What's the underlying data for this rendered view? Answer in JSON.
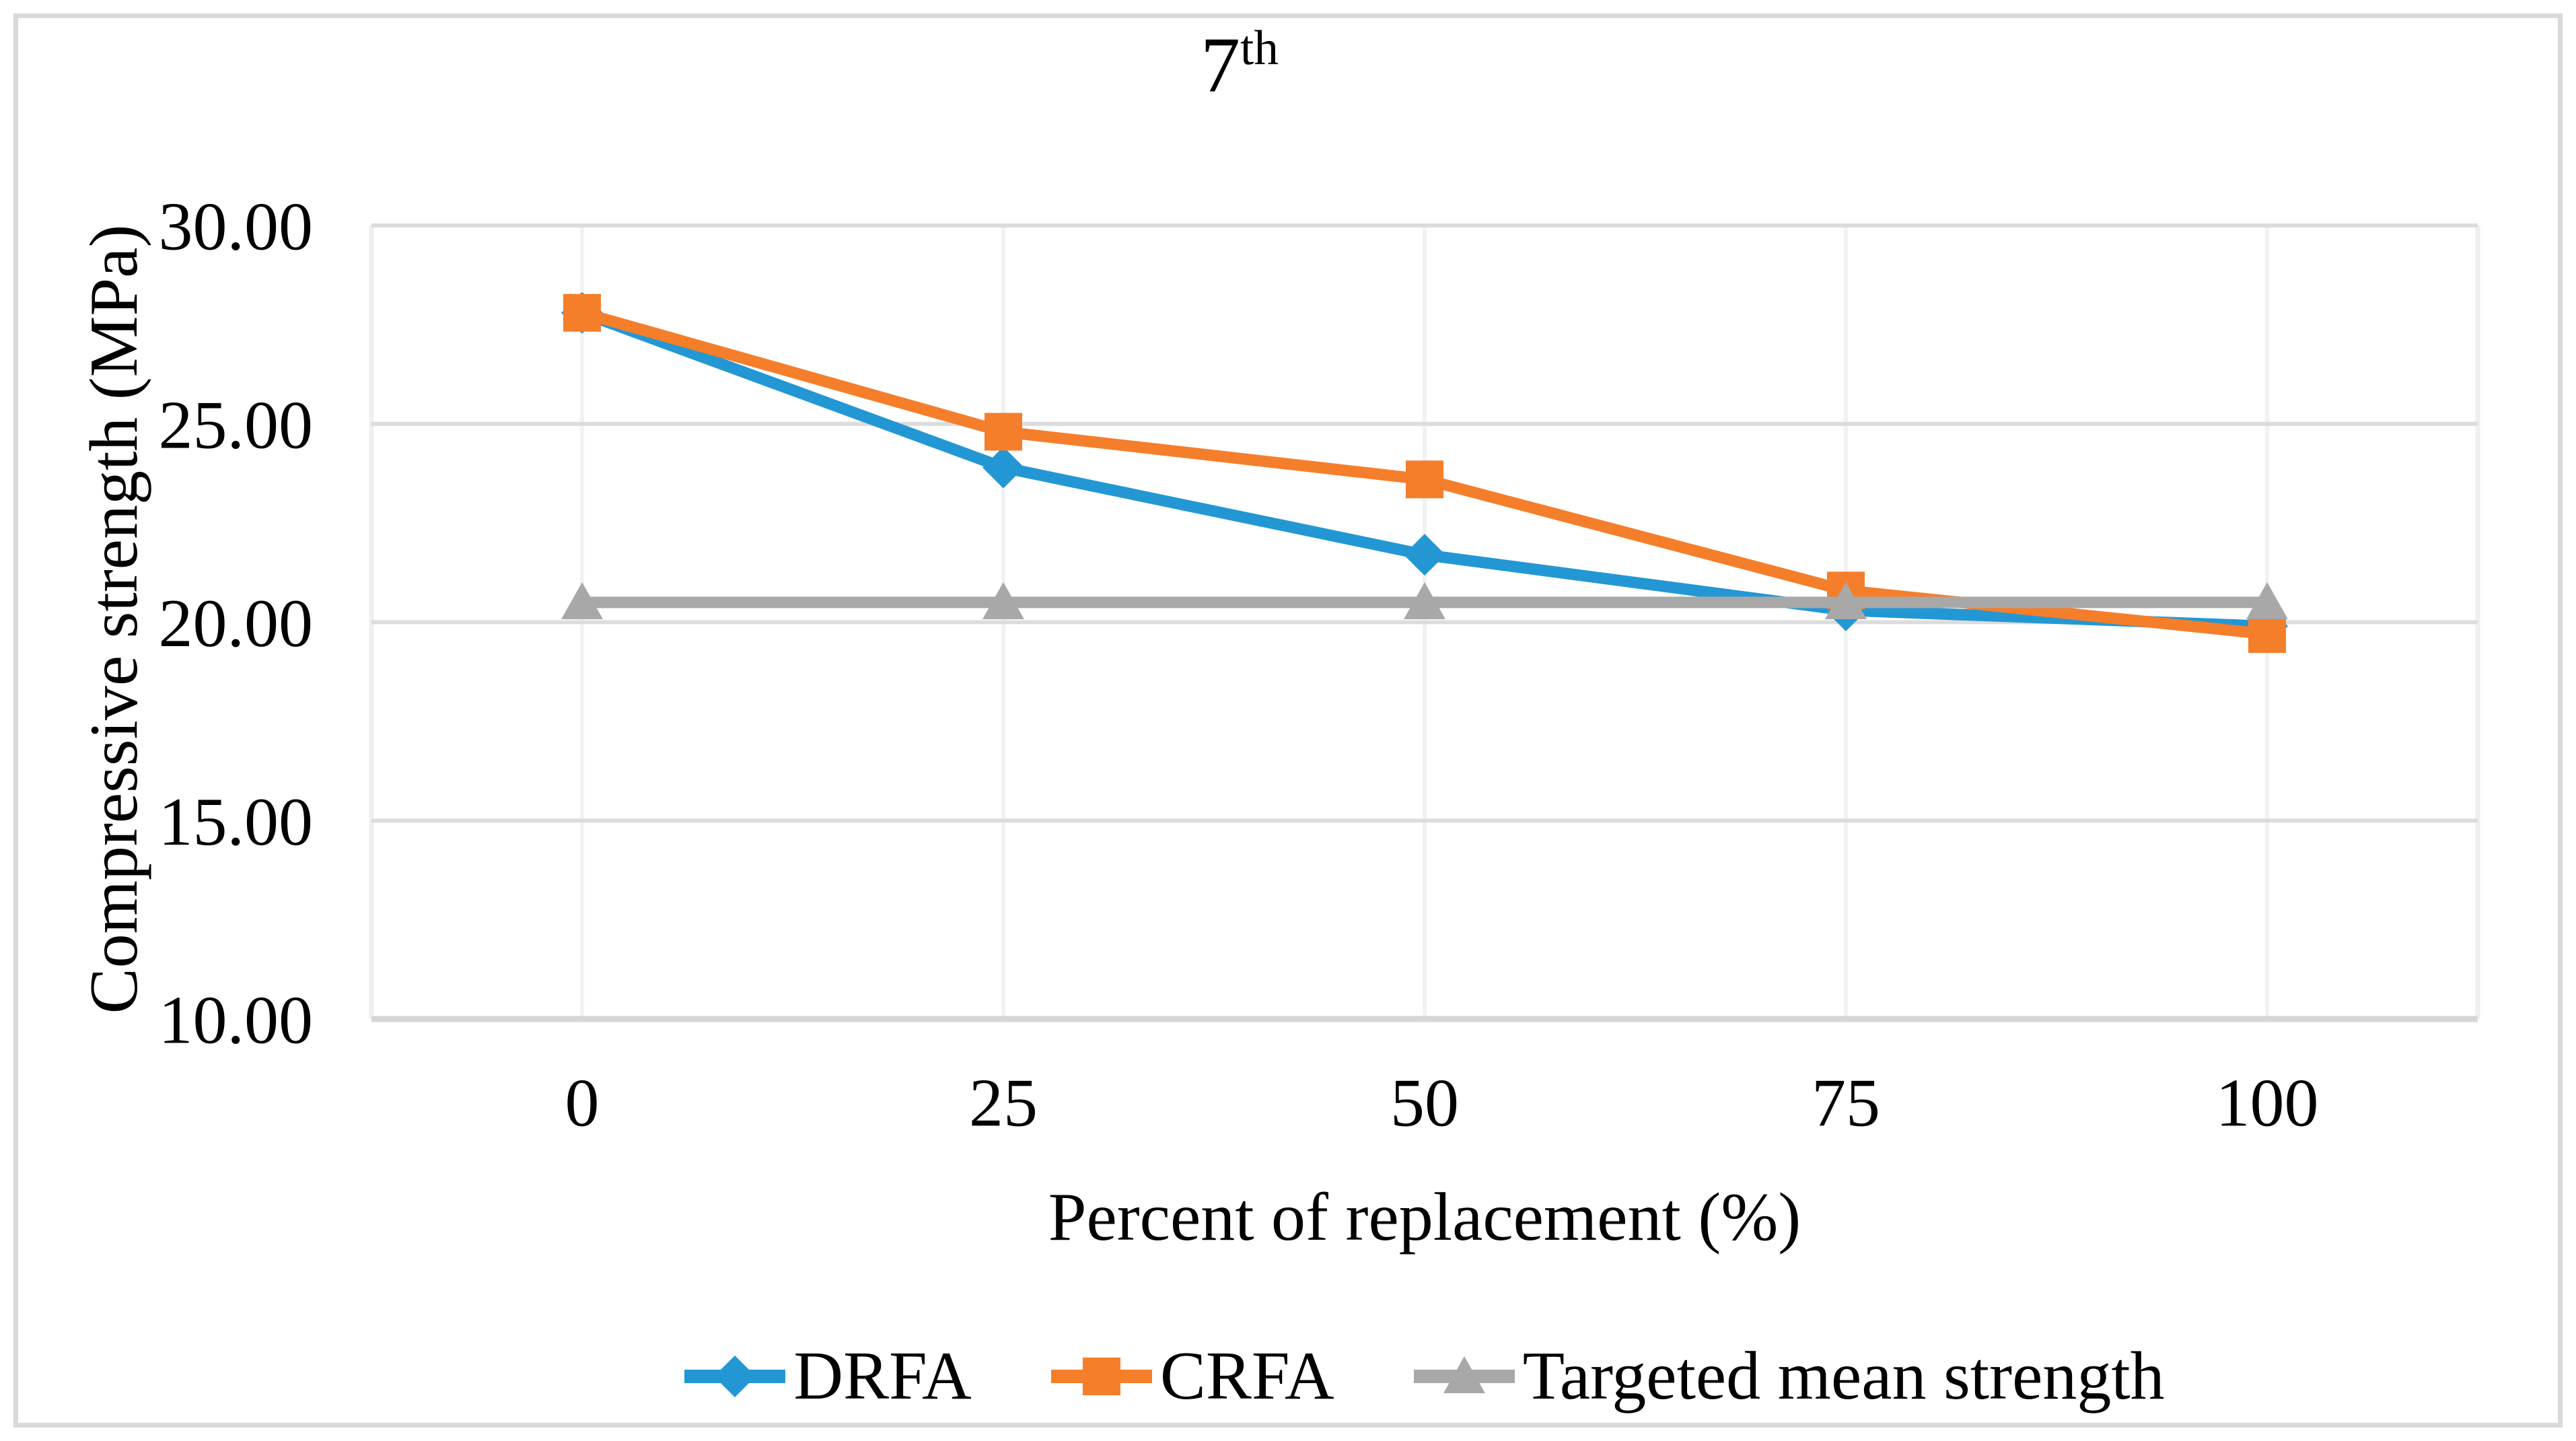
{
  "title": {
    "base": "7",
    "sup": "th"
  },
  "chart_data": {
    "type": "line",
    "title": "7th",
    "x_axis": {
      "label": "Percent of replacement (%)",
      "categories": [
        "0",
        "25",
        "50",
        "75",
        "100"
      ]
    },
    "y_axis": {
      "label": "Compressive strength (MPa)",
      "min": 10,
      "max": 30,
      "tick_step": 5,
      "tick_labels": [
        "10.00",
        "15.00",
        "20.00",
        "25.00",
        "30.00"
      ]
    },
    "series": [
      {
        "name": "DRFA",
        "marker": "diamond",
        "color": "#2397D4",
        "values": [
          27.8,
          23.9,
          21.7,
          20.3,
          19.9
        ]
      },
      {
        "name": "CRFA",
        "marker": "square",
        "color": "#F57E2B",
        "values": [
          27.8,
          24.8,
          23.6,
          20.8,
          19.7
        ]
      },
      {
        "name": "Targeted mean strength",
        "marker": "triangle",
        "color": "#A8A8A8",
        "values": [
          20.5,
          20.5,
          20.5,
          20.5,
          20.5
        ]
      }
    ],
    "legend_position": "bottom",
    "grid": true
  },
  "style": {
    "grid_horizontal": "#DCDCDC",
    "grid_vertical": "#F2F2F2",
    "plot_side_border": "#EFEFEF",
    "axis_line": "#D6D6D6",
    "figure_border": "#D9D9D9",
    "text_color": "#000000"
  }
}
